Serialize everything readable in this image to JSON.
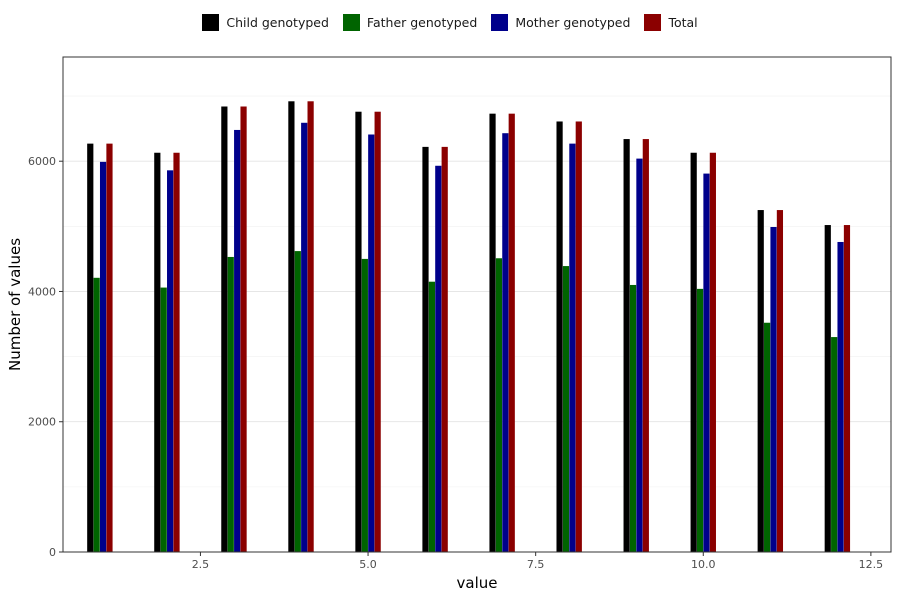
{
  "chart_data": {
    "type": "bar",
    "xlabel": "value",
    "ylabel": "Number of values",
    "xlim": [
      0.45,
      12.8
    ],
    "ylim": [
      0,
      7600
    ],
    "x_ticks": [
      2.5,
      5.0,
      7.5,
      10.0,
      12.5
    ],
    "x_tick_labels": [
      "2.5",
      "5.0",
      "7.5",
      "10.0",
      "12.5"
    ],
    "y_ticks": [
      0,
      2000,
      4000,
      6000
    ],
    "y_tick_labels": [
      "0",
      "2000",
      "4000",
      "6000"
    ],
    "grid": true,
    "legend_position": "top",
    "x": [
      1,
      2,
      3,
      4,
      5,
      6,
      7,
      8,
      9,
      10,
      11,
      12
    ],
    "series": [
      {
        "name": "Child genotyped",
        "color": "#000000",
        "values": [
          6270,
          6130,
          6840,
          6920,
          6760,
          6220,
          6730,
          6610,
          6340,
          6130,
          5250,
          5020
        ]
      },
      {
        "name": "Father genotyped",
        "color": "#006400",
        "values": [
          4210,
          4060,
          4530,
          4620,
          4500,
          4150,
          4510,
          4390,
          4100,
          4040,
          3520,
          3300
        ]
      },
      {
        "name": "Mother genotyped",
        "color": "#00008B",
        "values": [
          5990,
          5860,
          6480,
          6590,
          6410,
          5930,
          6430,
          6270,
          6040,
          5810,
          4990,
          4760
        ]
      },
      {
        "name": "Total",
        "color": "#8B0000",
        "values": [
          6270,
          6130,
          6840,
          6920,
          6760,
          6220,
          6730,
          6610,
          6340,
          6130,
          5250,
          5020
        ]
      }
    ]
  }
}
